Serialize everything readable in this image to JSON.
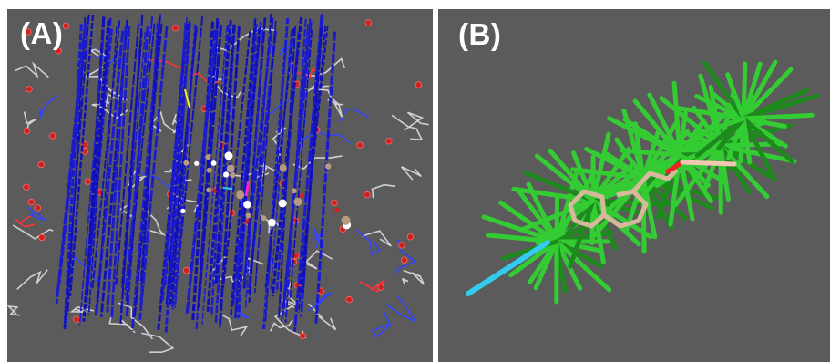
{
  "panels": [
    {
      "label": "(A)"
    },
    {
      "label": "(B)"
    }
  ],
  "colors": {
    "background": "#5b5b5b",
    "divider": "#ffffff",
    "grid_lines_a": "#1a1ad0",
    "grid_lines_b": "#33cc33",
    "backbone": "#d0d0d0",
    "water": "#cc2222",
    "ligand": "#d8b89a",
    "highlight": "#33ccee"
  },
  "icons": {
    "panel_a_content": "molecular-grid-render",
    "panel_b_content": "ligand-pose-fan-render"
  }
}
